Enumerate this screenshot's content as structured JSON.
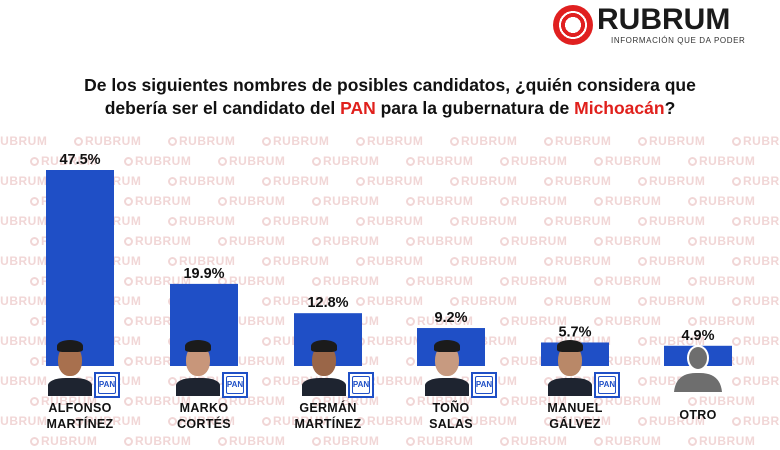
{
  "brand": {
    "name": "RUBRUM",
    "tagline": "INFORMACIÓN QUE DA PODER",
    "watermark": "RUBRUM"
  },
  "question": {
    "line1": "De los siguientes nombres de posibles candidatos, ¿quién considera que",
    "line2_before": "debería ser el candidato del ",
    "line2_party": "PAN",
    "line2_middle": " para la gubernatura de ",
    "line2_state": "Michoacán",
    "line2_after": "?"
  },
  "colors": {
    "bar": "#1f4fc6",
    "highlight": "#e0201c",
    "brand_red": "#e02020"
  },
  "party_badge": "PAN",
  "chart_data": {
    "type": "bar",
    "title": "",
    "xlabel": "",
    "ylabel": "",
    "ylim": [
      0,
      47.5
    ],
    "grid": false,
    "categories": [
      {
        "line1": "ALFONSO",
        "line2": "MARTÍNEZ"
      },
      {
        "line1": "MARKO",
        "line2": "CORTÉS"
      },
      {
        "line1": "GERMÁN",
        "line2": "MARTÍNEZ"
      },
      {
        "line1": "TOÑO",
        "line2": "SALAS"
      },
      {
        "line1": "MANUEL",
        "line2": "GÁLVEZ"
      },
      {
        "line1": "OTRO",
        "line2": ""
      }
    ],
    "values": [
      47.5,
      19.9,
      12.8,
      9.2,
      5.7,
      4.9
    ],
    "value_labels": [
      "47.5%",
      "19.9%",
      "12.8%",
      "9.2%",
      "5.7%",
      "4.9%"
    ],
    "candidate_icons": [
      "person-photo",
      "person-photo",
      "person-photo",
      "person-photo",
      "person-photo",
      "silhouette-icon"
    ]
  }
}
